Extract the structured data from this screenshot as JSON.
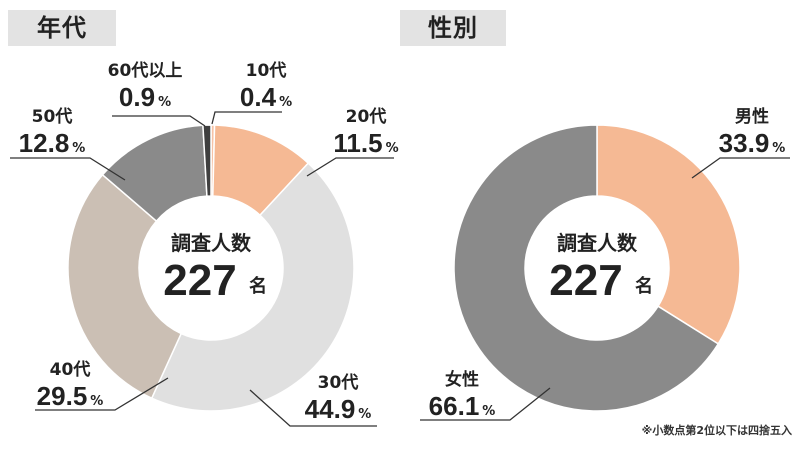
{
  "age": {
    "title": "年代",
    "center_line1": "調査人数",
    "center_number": "227",
    "center_unit": "名"
  },
  "gender": {
    "title": "性別",
    "center_line1": "調査人数",
    "center_number": "227",
    "center_unit": "名"
  },
  "footnote": "※小数点第2位以下は四捨五入",
  "chart_data": [
    {
      "type": "pie",
      "title": "年代",
      "unit": "%",
      "slices": [
        {
          "label": "10代",
          "value": 0.4,
          "color": "#f6c2a6"
        },
        {
          "label": "20代",
          "value": 11.5,
          "color": "#f5b994"
        },
        {
          "label": "30代",
          "value": 44.9,
          "color": "#e0e0e0"
        },
        {
          "label": "40代",
          "value": 29.5,
          "color": "#cbbfb4"
        },
        {
          "label": "50代",
          "value": 12.8,
          "color": "#8a8a8a"
        },
        {
          "label": "60代以上",
          "value": 0.9,
          "color": "#3f3f3f"
        }
      ]
    },
    {
      "type": "pie",
      "title": "性別",
      "unit": "%",
      "slices": [
        {
          "label": "男性",
          "value": 33.9,
          "color": "#f5b994"
        },
        {
          "label": "女性",
          "value": 66.1,
          "color": "#8a8a8a"
        }
      ]
    }
  ]
}
